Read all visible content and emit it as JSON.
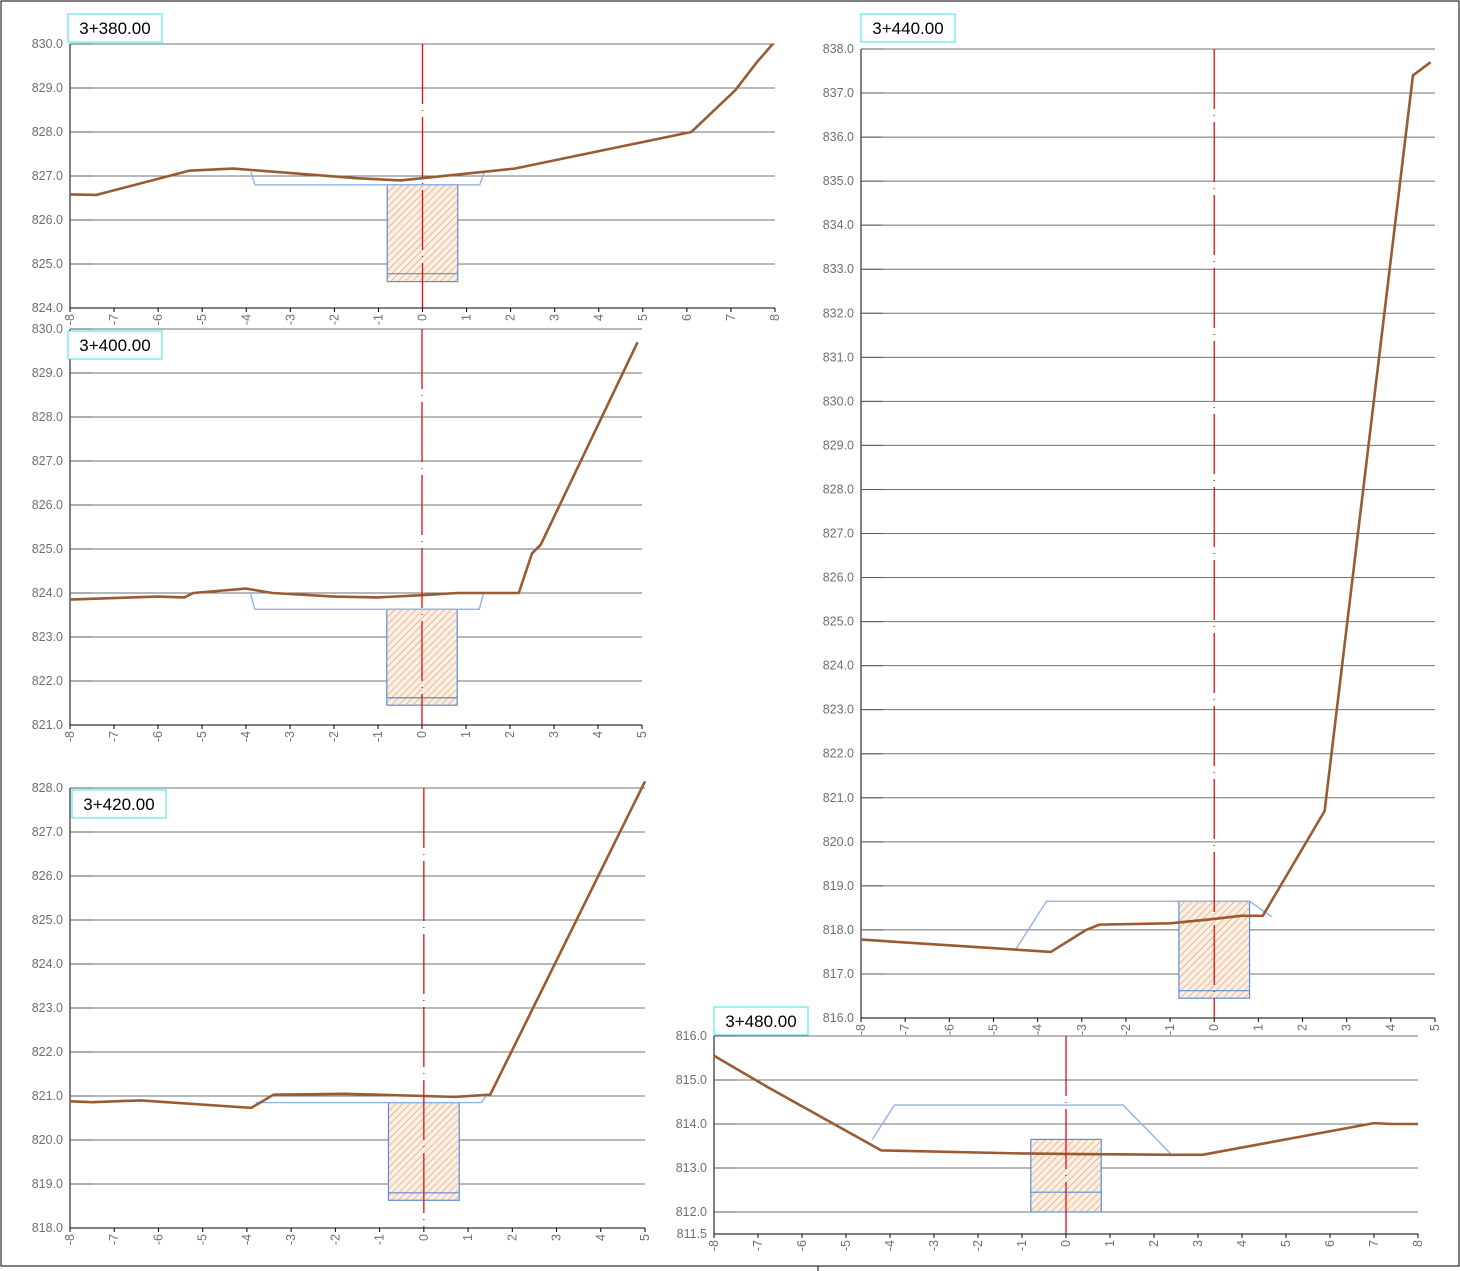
{
  "sections": [
    {
      "id": "s3380",
      "title": "3+380.00",
      "y_range": [
        824.0,
        830.0
      ],
      "y_ticks": [
        "830.0",
        "829.0",
        "828.0",
        "827.0",
        "826.0",
        "825.0",
        "824.0"
      ],
      "x_range": [
        -8,
        8
      ],
      "x_ticks": [
        "-8",
        "-7",
        "-6",
        "-5",
        "-4",
        "-3",
        "-2",
        "-1",
        "0",
        "1",
        "2",
        "3",
        "4",
        "5",
        "6",
        "7",
        "8"
      ],
      "ground": [
        [
          -8,
          826.58
        ],
        [
          -7.4,
          826.57
        ],
        [
          -5.3,
          827.12
        ],
        [
          -4.3,
          827.17
        ],
        [
          -1.5,
          826.95
        ],
        [
          -0.5,
          826.9
        ],
        [
          2.1,
          827.17
        ],
        [
          6.1,
          828.0
        ],
        [
          7.1,
          828.95
        ],
        [
          7.6,
          829.6
        ],
        [
          7.95,
          830.0
        ]
      ],
      "template": [
        [
          -3.9,
          827.1
        ],
        [
          -3.8,
          826.8
        ],
        [
          1.3,
          826.8
        ],
        [
          1.4,
          827.1
        ]
      ],
      "pit": {
        "x": [
          -0.8,
          0.8
        ],
        "top": 826.8,
        "bottom": 824.6,
        "inner": 824.78
      }
    },
    {
      "id": "s3400",
      "title": "3+400.00",
      "y_range": [
        821.0,
        830.0
      ],
      "y_ticks": [
        "830.0",
        "829.0",
        "828.0",
        "827.0",
        "826.0",
        "825.0",
        "824.0",
        "823.0",
        "822.0",
        "821.0"
      ],
      "x_range": [
        -8,
        5
      ],
      "x_ticks": [
        "-8",
        "-7",
        "-6",
        "-5",
        "-4",
        "-3",
        "-2",
        "-1",
        "0",
        "1",
        "2",
        "3",
        "4",
        "5"
      ],
      "ground": [
        [
          -8,
          823.85
        ],
        [
          -6,
          823.92
        ],
        [
          -5.4,
          823.9
        ],
        [
          -5.2,
          824.0
        ],
        [
          -4.0,
          824.1
        ],
        [
          -3.4,
          824.0
        ],
        [
          -2,
          823.92
        ],
        [
          -1,
          823.9
        ],
        [
          0,
          823.95
        ],
        [
          0.8,
          824.0
        ],
        [
          2.2,
          824.0
        ],
        [
          2.5,
          824.9
        ],
        [
          2.7,
          825.1
        ],
        [
          4.9,
          829.7
        ]
      ],
      "template": [
        [
          -3.9,
          824.0
        ],
        [
          -3.8,
          823.63
        ],
        [
          1.3,
          823.63
        ],
        [
          1.4,
          824.0
        ]
      ],
      "pit": {
        "x": [
          -0.8,
          0.8
        ],
        "top": 823.63,
        "bottom": 821.45,
        "inner": 821.62
      }
    },
    {
      "id": "s3420",
      "title": "3+420.00",
      "y_range": [
        818.0,
        828.0
      ],
      "y_ticks": [
        "828.0",
        "827.0",
        "826.0",
        "825.0",
        "824.0",
        "823.0",
        "822.0",
        "821.0",
        "820.0",
        "819.0",
        "818.0"
      ],
      "x_range": [
        -8,
        5
      ],
      "x_ticks": [
        "-8",
        "-7",
        "-6",
        "-5",
        "-4",
        "-3",
        "-2",
        "-1",
        "0",
        "1",
        "2",
        "3",
        "4",
        "5"
      ],
      "ground": [
        [
          -8,
          820.88
        ],
        [
          -7.5,
          820.86
        ],
        [
          -6.4,
          820.9
        ],
        [
          -3.9,
          820.73
        ],
        [
          -3.4,
          821.03
        ],
        [
          -1.8,
          821.05
        ],
        [
          0,
          821.0
        ],
        [
          0.7,
          820.98
        ],
        [
          1.5,
          821.03
        ],
        [
          5,
          828.15
        ]
      ],
      "template": [
        [
          -3.8,
          820.85
        ],
        [
          -3.7,
          820.85
        ],
        [
          1.3,
          820.85
        ],
        [
          1.4,
          821.0
        ]
      ],
      "pit": {
        "x": [
          -0.8,
          0.8
        ],
        "top": 820.85,
        "bottom": 818.63,
        "inner": 818.8
      }
    },
    {
      "id": "s3440",
      "title": "3+440.00",
      "y_range": [
        816.0,
        838.0
      ],
      "y_ticks": [
        "838.0",
        "837.0",
        "836.0",
        "835.0",
        "834.0",
        "833.0",
        "832.0",
        "831.0",
        "830.0",
        "829.0",
        "828.0",
        "827.0",
        "826.0",
        "825.0",
        "824.0",
        "823.0",
        "822.0",
        "821.0",
        "820.0",
        "819.0",
        "818.0",
        "817.0",
        "816.0"
      ],
      "x_range": [
        -8,
        5
      ],
      "x_ticks": [
        "-8",
        "-7",
        "-6",
        "-5",
        "-4",
        "-3",
        "-2",
        "-1",
        "0",
        "1",
        "2",
        "3",
        "4",
        "5"
      ],
      "ground": [
        [
          -8,
          817.78
        ],
        [
          -3.7,
          817.5
        ],
        [
          -2.9,
          818.0
        ],
        [
          -2.6,
          818.12
        ],
        [
          -1,
          818.15
        ],
        [
          0,
          818.25
        ],
        [
          0.6,
          818.32
        ],
        [
          1.1,
          818.32
        ],
        [
          2.5,
          820.7
        ],
        [
          4.5,
          837.4
        ],
        [
          4.9,
          837.7
        ]
      ],
      "template": [
        [
          -4.5,
          817.55
        ],
        [
          -3.8,
          818.65
        ],
        [
          0.8,
          818.65
        ],
        [
          1.3,
          818.3
        ]
      ],
      "pit": {
        "x": [
          -0.8,
          0.8
        ],
        "top": 818.65,
        "bottom": 816.45,
        "inner": 816.62
      }
    },
    {
      "id": "s3480",
      "title": "3+480.00",
      "y_range": [
        811.5,
        816.0
      ],
      "y_ticks": [
        "816.0",
        "815.0",
        "814.0",
        "813.0",
        "812.0",
        "811.5"
      ],
      "x_range": [
        -8,
        8
      ],
      "x_ticks": [
        "-8",
        "-7",
        "-6",
        "-5",
        "-4",
        "-3",
        "-2",
        "-1",
        "0",
        "1",
        "2",
        "3",
        "4",
        "5",
        "6",
        "7",
        "8"
      ],
      "ground": [
        [
          -8,
          815.55
        ],
        [
          -6.8,
          814.85
        ],
        [
          -4.2,
          813.4
        ],
        [
          -1,
          813.33
        ],
        [
          0,
          813.32
        ],
        [
          2.4,
          813.3
        ],
        [
          3.1,
          813.3
        ],
        [
          7,
          814.02
        ],
        [
          7.4,
          814.0
        ],
        [
          8,
          814.0
        ]
      ],
      "template": [
        [
          -4.4,
          813.65
        ],
        [
          -3.9,
          814.43
        ],
        [
          1.3,
          814.43
        ],
        [
          2.4,
          813.3
        ]
      ],
      "pit": {
        "x": [
          -0.8,
          0.8
        ],
        "top": 813.65,
        "bottom": 812.0,
        "inner": 812.45
      }
    }
  ]
}
